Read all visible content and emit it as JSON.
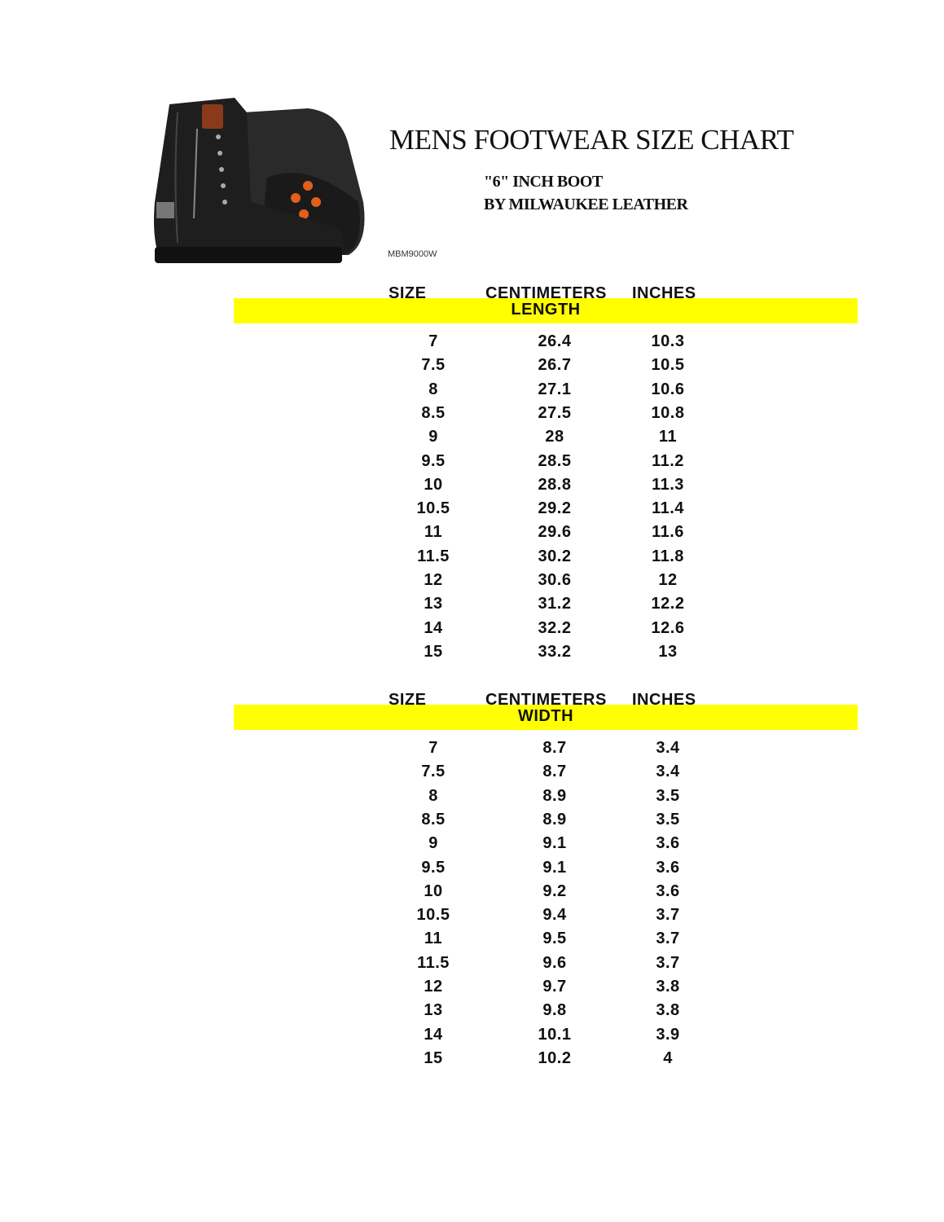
{
  "document": {
    "title": "MENS FOOTWEAR SIZE CHART",
    "subtitle_line1": "\"6\" INCH BOOT",
    "subtitle_line2": "BY MILWAUKEE LEATHER",
    "product_code": "MBM9000W",
    "highlight_color": "#ffff00"
  },
  "tables": [
    {
      "headers": {
        "size": "SIZE",
        "cm": "CENTIMETERS",
        "in": "INCHES"
      },
      "section_label": "LENGTH",
      "rows": [
        [
          "7",
          "26.4",
          "10.3"
        ],
        [
          "7.5",
          "26.7",
          "10.5"
        ],
        [
          "8",
          "27.1",
          "10.6"
        ],
        [
          "8.5",
          "27.5",
          "10.8"
        ],
        [
          "9",
          "28",
          "11"
        ],
        [
          "9.5",
          "28.5",
          "11.2"
        ],
        [
          "10",
          "28.8",
          "11.3"
        ],
        [
          "10.5",
          "29.2",
          "11.4"
        ],
        [
          "11",
          "29.6",
          "11.6"
        ],
        [
          "11.5",
          "30.2",
          "11.8"
        ],
        [
          "12",
          "30.6",
          "12"
        ],
        [
          "13",
          "31.2",
          "12.2"
        ],
        [
          "14",
          "32.2",
          "12.6"
        ],
        [
          "15",
          "33.2",
          "13"
        ]
      ]
    },
    {
      "headers": {
        "size": "SIZE",
        "cm": "CENTIMETERS",
        "in": "INCHES"
      },
      "section_label": "WIDTH",
      "rows": [
        [
          "7",
          "8.7",
          "3.4"
        ],
        [
          "7.5",
          "8.7",
          "3.4"
        ],
        [
          "8",
          "8.9",
          "3.5"
        ],
        [
          "8.5",
          "8.9",
          "3.5"
        ],
        [
          "9",
          "9.1",
          "3.6"
        ],
        [
          "9.5",
          "9.1",
          "3.6"
        ],
        [
          "10",
          "9.2",
          "3.6"
        ],
        [
          "10.5",
          "9.4",
          "3.7"
        ],
        [
          "11",
          "9.5",
          "3.7"
        ],
        [
          "11.5",
          "9.6",
          "3.7"
        ],
        [
          "12",
          "9.7",
          "3.8"
        ],
        [
          "13",
          "9.8",
          "3.8"
        ],
        [
          "14",
          "10.1",
          "3.9"
        ],
        [
          "15",
          "10.2",
          "4"
        ]
      ]
    }
  ]
}
